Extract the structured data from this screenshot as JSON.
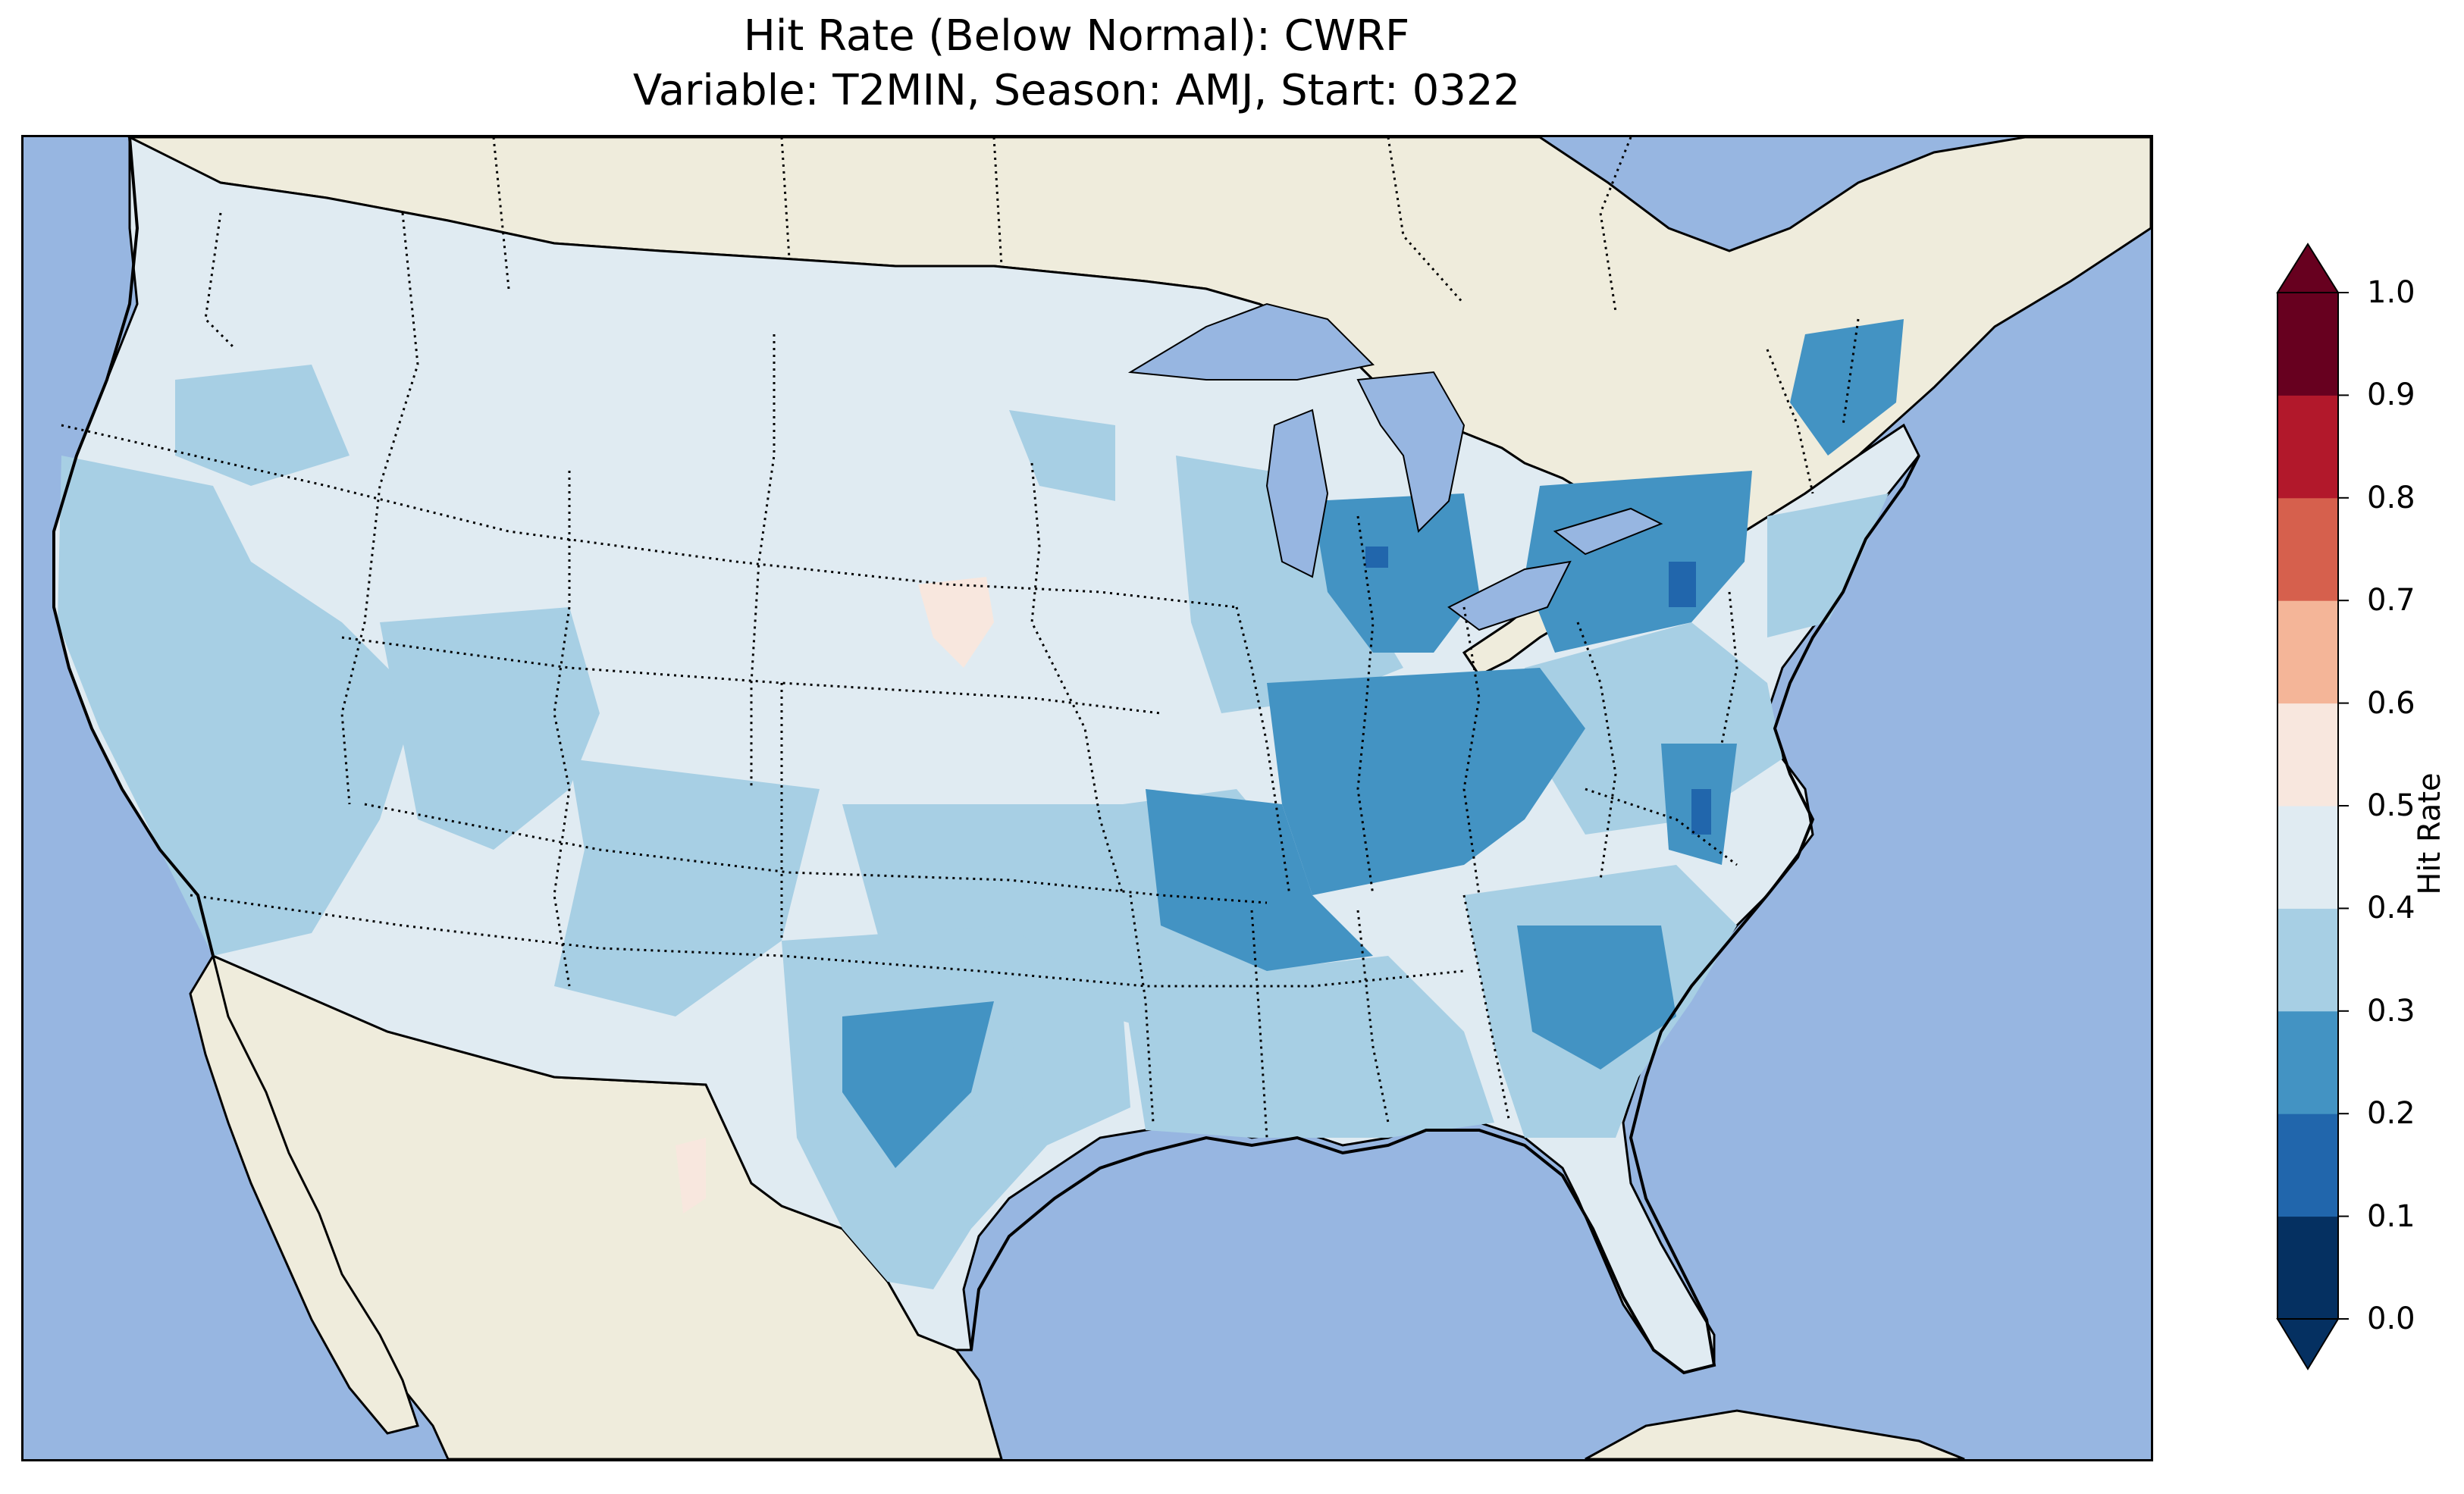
{
  "title": {
    "line1": "Hit Rate (Below Normal): CWRF",
    "line2": "Variable: T2MIN, Season: AMJ, Start: 0322"
  },
  "map": {
    "region": "Contiguous United States",
    "colors": {
      "ocean": "#97b6e1",
      "land_outside": "#efecdc",
      "coast_line": "#000000",
      "state_border": "#000000"
    }
  },
  "colorbar": {
    "label": "Hit Rate",
    "ticks": [
      "0.0",
      "0.1",
      "0.2",
      "0.3",
      "0.4",
      "0.5",
      "0.6",
      "0.7",
      "0.8",
      "0.9",
      "1.0"
    ],
    "bins": [
      {
        "range": [
          0.0,
          0.1
        ],
        "color": "#053061"
      },
      {
        "range": [
          0.1,
          0.2
        ],
        "color": "#2166ac"
      },
      {
        "range": [
          0.2,
          0.3
        ],
        "color": "#4393c3"
      },
      {
        "range": [
          0.3,
          0.4
        ],
        "color": "#a7cfe4"
      },
      {
        "range": [
          0.4,
          0.5
        ],
        "color": "#e0ebf2"
      },
      {
        "range": [
          0.5,
          0.6
        ],
        "color": "#f8e7de"
      },
      {
        "range": [
          0.6,
          0.7
        ],
        "color": "#f4b598"
      },
      {
        "range": [
          0.7,
          0.8
        ],
        "color": "#d6604d"
      },
      {
        "range": [
          0.8,
          0.9
        ],
        "color": "#b2182b"
      },
      {
        "range": [
          0.9,
          1.0
        ],
        "color": "#67001f"
      }
    ],
    "extend": "both"
  }
}
